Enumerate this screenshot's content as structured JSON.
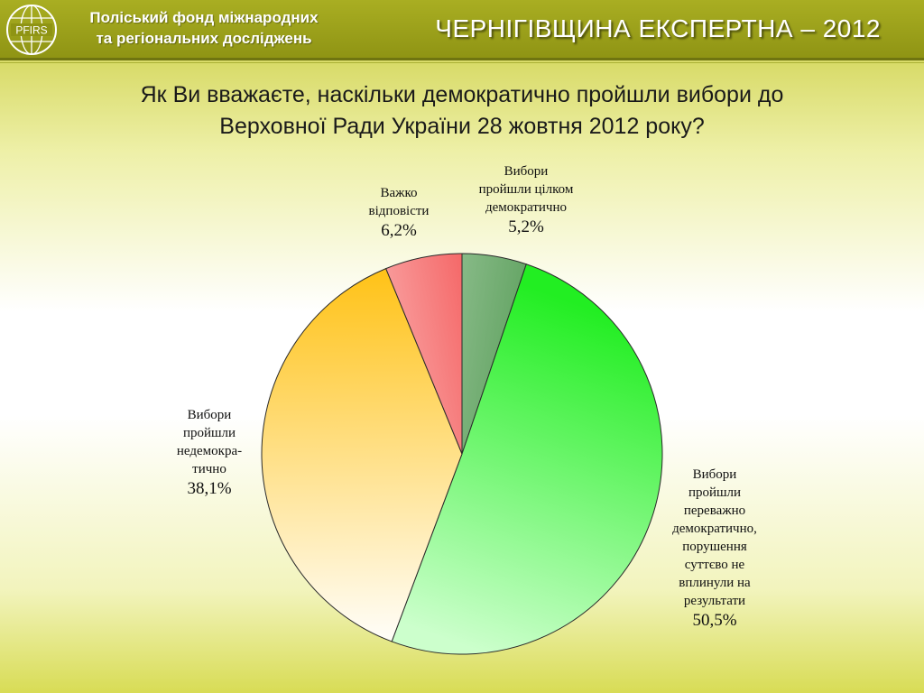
{
  "header": {
    "org_line1": "Поліський фонд міжнародних",
    "org_line2": "та регіональних досліджень",
    "logo_text": "PFIRS",
    "brand": "ЧЕРНІГІВЩИНА ЕКСПЕРТНА – 2012",
    "colors": {
      "bar": "#9fa41c",
      "line": "#6f7410"
    }
  },
  "question": {
    "line1": "Як Ви вважаєте, наскільки демократично пройшли вибори до",
    "line2": "Верховної Ради України 28 жовтня 2012 року?"
  },
  "chart_data": {
    "type": "pie",
    "title": "",
    "slices": [
      {
        "label": "Вибори\nпройшли цілком\nдемократично",
        "value": 5.2,
        "value_label": "5,2%",
        "color_start": "#1f7a1f",
        "color_end": "#cfe6cf"
      },
      {
        "label": "Вибори\nпройшли\nпереважно\nдемократично,\nпорушення\nсуттєво не\nвплинули на\nрезультати",
        "value": 50.5,
        "value_label": "50,5%",
        "color_start": "#ccffcc",
        "color_end": "#22ee22"
      },
      {
        "label": "Вибори\nпройшли\nнедемокра-\nтично",
        "value": 38.1,
        "value_label": "38,1%",
        "color_start": "#ffc31a",
        "color_end": "#fffdf6"
      },
      {
        "label": "Важко\nвідповісти",
        "value": 6.2,
        "value_label": "6,2%",
        "color_start": "#ee1111",
        "color_end": "#fff0f0"
      }
    ]
  }
}
